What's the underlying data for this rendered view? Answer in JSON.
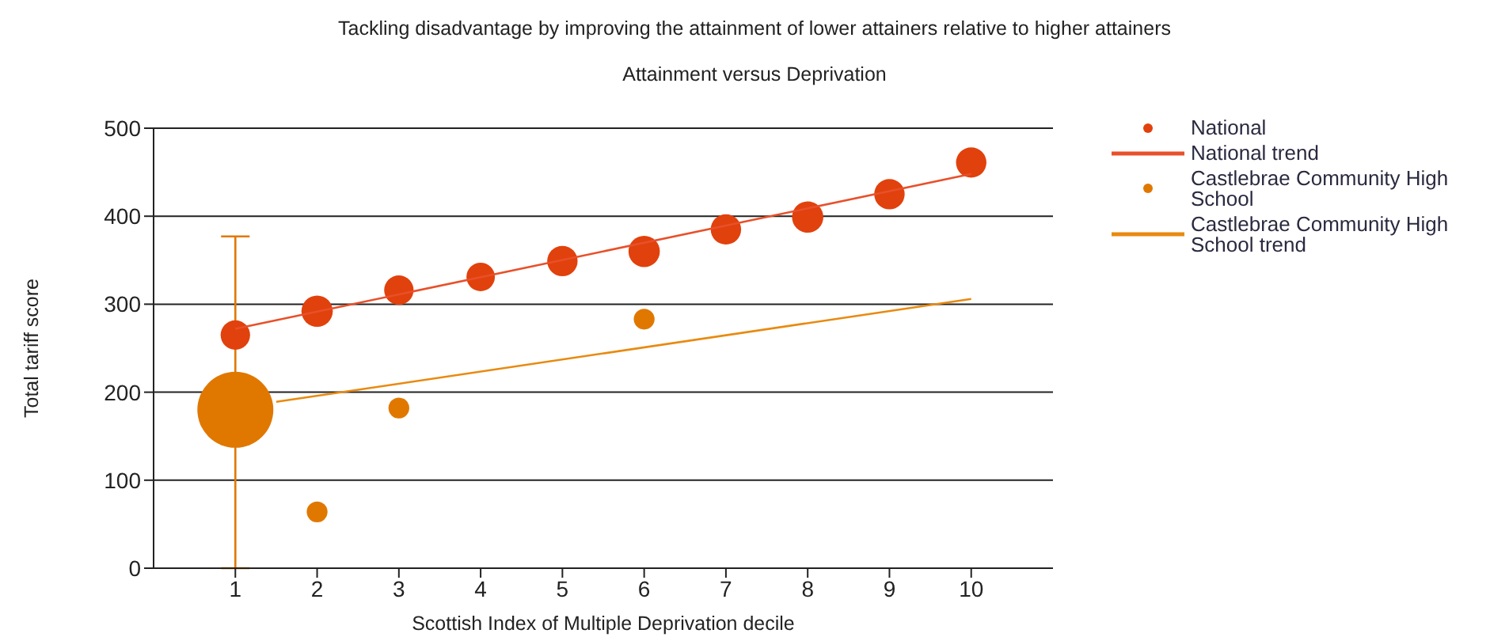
{
  "chart_data": {
    "type": "bubble",
    "title": "Tackling disadvantage by improving the attainment of lower attainers relative to higher attainers",
    "subtitle": "Attainment versus Deprivation",
    "xlabel": "Scottish Index of Multiple Deprivation decile",
    "ylabel": "Total tariff score",
    "x": [
      1,
      2,
      3,
      4,
      5,
      6,
      7,
      8,
      9,
      10
    ],
    "xlim": [
      0,
      11
    ],
    "xticks": [
      1,
      2,
      3,
      4,
      5,
      6,
      7,
      8,
      9,
      10
    ],
    "ylim": [
      0,
      500
    ],
    "yticks": [
      0,
      100,
      200,
      300,
      400,
      500
    ],
    "grid": "y",
    "legend": "top right",
    "line_style": "solid",
    "series": [
      {
        "name": "National",
        "marker": "circle",
        "color": "#e1410d",
        "values": [
          265,
          292,
          316,
          331,
          349,
          360,
          385,
          399,
          425,
          461
        ],
        "sizes": [
          0.15,
          0.17,
          0.15,
          0.14,
          0.16,
          0.17,
          0.16,
          0.17,
          0.16,
          0.16
        ]
      },
      {
        "name": "National trend",
        "type": "line",
        "color": "#e8502a",
        "x": [
          1,
          10
        ],
        "values": [
          272,
          448
        ]
      },
      {
        "name": "Castlebrae Community High School",
        "marker": "circle",
        "color": "#e07800",
        "values": [
          180,
          64,
          182,
          null,
          null,
          283,
          null,
          null,
          null,
          null
        ],
        "sizes": [
          1,
          0.075,
          0.075,
          null,
          null,
          0.075,
          null,
          null,
          null,
          null
        ],
        "errors": [
          [
            0,
            377
          ],
          0,
          0,
          null,
          null,
          0,
          null,
          null,
          null,
          null
        ]
      },
      {
        "name": "Castlebrae Community High School trend",
        "type": "line",
        "color": "#e88a10",
        "x": [
          1.5,
          10
        ],
        "values": [
          189,
          306
        ]
      }
    ]
  }
}
